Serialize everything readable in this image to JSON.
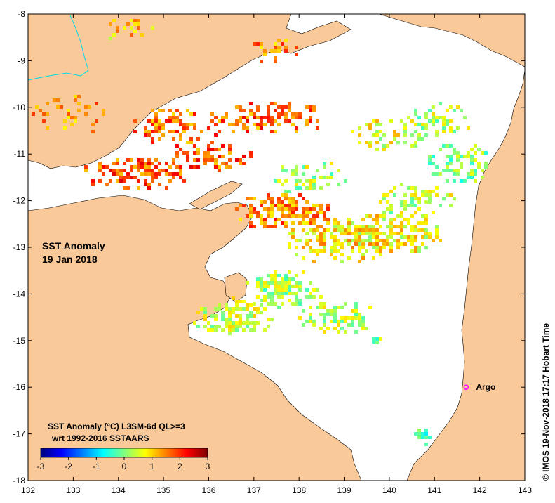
{
  "map": {
    "title_line1": "SST Anomaly",
    "title_line2": "19 Jan 2018",
    "legend_line1": "SST Anomaly (°C) L3SM-6d QL>=3",
    "legend_line2": "wrt 1992-2016 SSTAARS",
    "credit": "© IMOS 19-Nov-2018 17:17 Hobart Time",
    "argo_label": "Argo",
    "argo_position": {
      "lon": 141.7,
      "lat": -16.0
    },
    "lon_range": [
      132,
      143
    ],
    "lat_range": [
      -18,
      -8
    ],
    "lon_ticks": [
      "132",
      "133",
      "134",
      "135",
      "136",
      "137",
      "138",
      "139",
      "140",
      "141",
      "142",
      "143"
    ],
    "lat_ticks": [
      "-8",
      "-9",
      "-10",
      "-11",
      "-12",
      "-13",
      "-14",
      "-15",
      "-16",
      "-17",
      "-18"
    ],
    "colorbar_ticks": [
      "-3",
      "-2",
      "-1",
      "0",
      "1",
      "2",
      "3"
    ],
    "colorbar_range": [
      -3,
      3
    ],
    "colors": {
      "land": "#f9c99a",
      "ocean_nodata": "#ffffff",
      "river": "#00d8e8",
      "argo_marker": "#ff00ff",
      "colormap": [
        "#00007f",
        "#0000ff",
        "#007fff",
        "#00ffff",
        "#7fff7f",
        "#ffff00",
        "#ff7f00",
        "#ff0000",
        "#7f0000"
      ]
    }
  }
}
